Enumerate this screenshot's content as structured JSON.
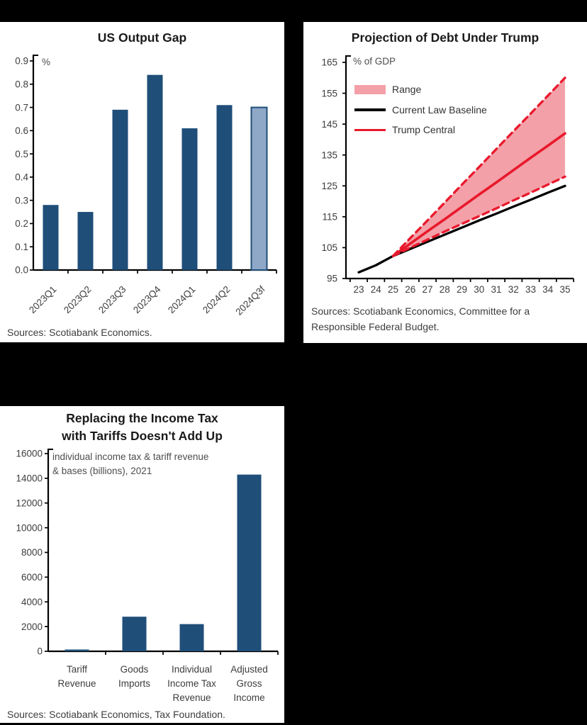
{
  "page": {
    "background_color": "#000000",
    "panel_background_color": "#ffffff"
  },
  "colors": {
    "navy_bar": "#1F4E79",
    "forecast_bar_fill": "#8FA8C8",
    "red_line": "#E8192C",
    "pink_band": "#F4A0A8",
    "black_line": "#000000",
    "axis": "#000000",
    "tick_label": "#3d3d3d",
    "title_text": "#1a1a1a"
  },
  "chart_data": [
    {
      "type": "bar",
      "title": "US Output Gap",
      "unit_label": "%",
      "categories": [
        "2023Q1",
        "2023Q2",
        "2023Q3",
        "2023Q4",
        "2024Q1",
        "2024Q2",
        "2024Q3f"
      ],
      "values": [
        0.28,
        0.25,
        0.69,
        0.84,
        0.61,
        0.71,
        0.7
      ],
      "forecast_index": 6,
      "forecast_category": "2024Q3f",
      "ylim": [
        0,
        0.9
      ],
      "yticks": [
        "0.0",
        "0.1",
        "0.2",
        "0.3",
        "0.4",
        "0.5",
        "0.6",
        "0.7",
        "0.8",
        "0.9"
      ],
      "grid": false,
      "sources": "Sources: Scotiabank Economics."
    },
    {
      "type": "line",
      "title": "Projection of Debt Under Trump",
      "unit_label": "% of GDP",
      "x": [
        23,
        24,
        25,
        26,
        27,
        28,
        29,
        30,
        31,
        32,
        33,
        34,
        35
      ],
      "xtick_labels": [
        "23",
        "24",
        "25",
        "26",
        "27",
        "28",
        "29",
        "30",
        "31",
        "32",
        "33",
        "34",
        "35"
      ],
      "ylim": [
        95,
        165
      ],
      "yticks": [
        "95",
        "105",
        "115",
        "125",
        "135",
        "145",
        "155",
        "165"
      ],
      "grid": false,
      "legend_position": "upper-left",
      "series": [
        {
          "name": "Current Law Baseline",
          "color": "#000000",
          "style": "solid",
          "x_start": 23,
          "values": [
            97,
            99.3,
            102.3,
            104.6,
            106.9,
            109.2,
            111.5,
            113.8,
            116.0,
            118.3,
            120.5,
            122.8,
            125
          ]
        },
        {
          "name": "Trump Central",
          "color": "#E8192C",
          "style": "solid",
          "x_start": 25,
          "values": [
            102.3,
            106.3,
            110.3,
            114.2,
            118.2,
            122.2,
            126.1,
            130.1,
            134.1,
            138.0,
            142
          ]
        },
        {
          "name": "Range Upper Bound",
          "color": "#E8192C",
          "style": "dashed",
          "x_start": 25,
          "values": [
            102.3,
            108.1,
            113.8,
            119.6,
            125.4,
            131.1,
            136.9,
            142.7,
            148.4,
            154.2,
            160
          ]
        },
        {
          "name": "Range Lower Bound",
          "color": "#E8192C",
          "style": "dashed",
          "x_start": 25,
          "values": [
            102.3,
            105.0,
            107.6,
            110.2,
            112.7,
            115.2,
            117.7,
            120.3,
            122.8,
            125.4,
            128
          ]
        }
      ],
      "band": {
        "name": "Range",
        "fill": "#F4A0A8",
        "upper_series": 2,
        "lower_series": 3
      },
      "legend": [
        {
          "label": "Range",
          "swatch": "band"
        },
        {
          "label": "Current Law Baseline",
          "swatch": "line-black"
        },
        {
          "label": "Trump Central",
          "swatch": "line-red"
        }
      ],
      "sources_lines": [
        "Sources: Scotiabank Economics, Committee for a",
        "Responsible Federal Budget."
      ]
    },
    {
      "type": "bar",
      "title_lines": [
        "Replacing the Income Tax",
        "with Tariffs Doesn't Add Up"
      ],
      "annotation_lines": [
        "individual income tax & tariff revenue",
        "& bases (billions), 2021"
      ],
      "categories": [
        "Tariff Revenue",
        "Goods Imports",
        "Individual Income Tax Revenue",
        "Adjusted Gross Income"
      ],
      "category_label_lines": [
        [
          "Tariff",
          "Revenue"
        ],
        [
          "Goods",
          "Imports"
        ],
        [
          "Individual",
          "Income Tax",
          "Revenue"
        ],
        [
          "Adjusted",
          "Gross",
          "Income"
        ]
      ],
      "values": [
        100,
        2800,
        2200,
        14300
      ],
      "ylim": [
        0,
        16000
      ],
      "yticks": [
        "0",
        "2000",
        "4000",
        "6000",
        "8000",
        "10000",
        "12000",
        "14000",
        "16000"
      ],
      "grid": false,
      "sources": "Sources: Scotiabank Economics, Tax Foundation."
    }
  ]
}
